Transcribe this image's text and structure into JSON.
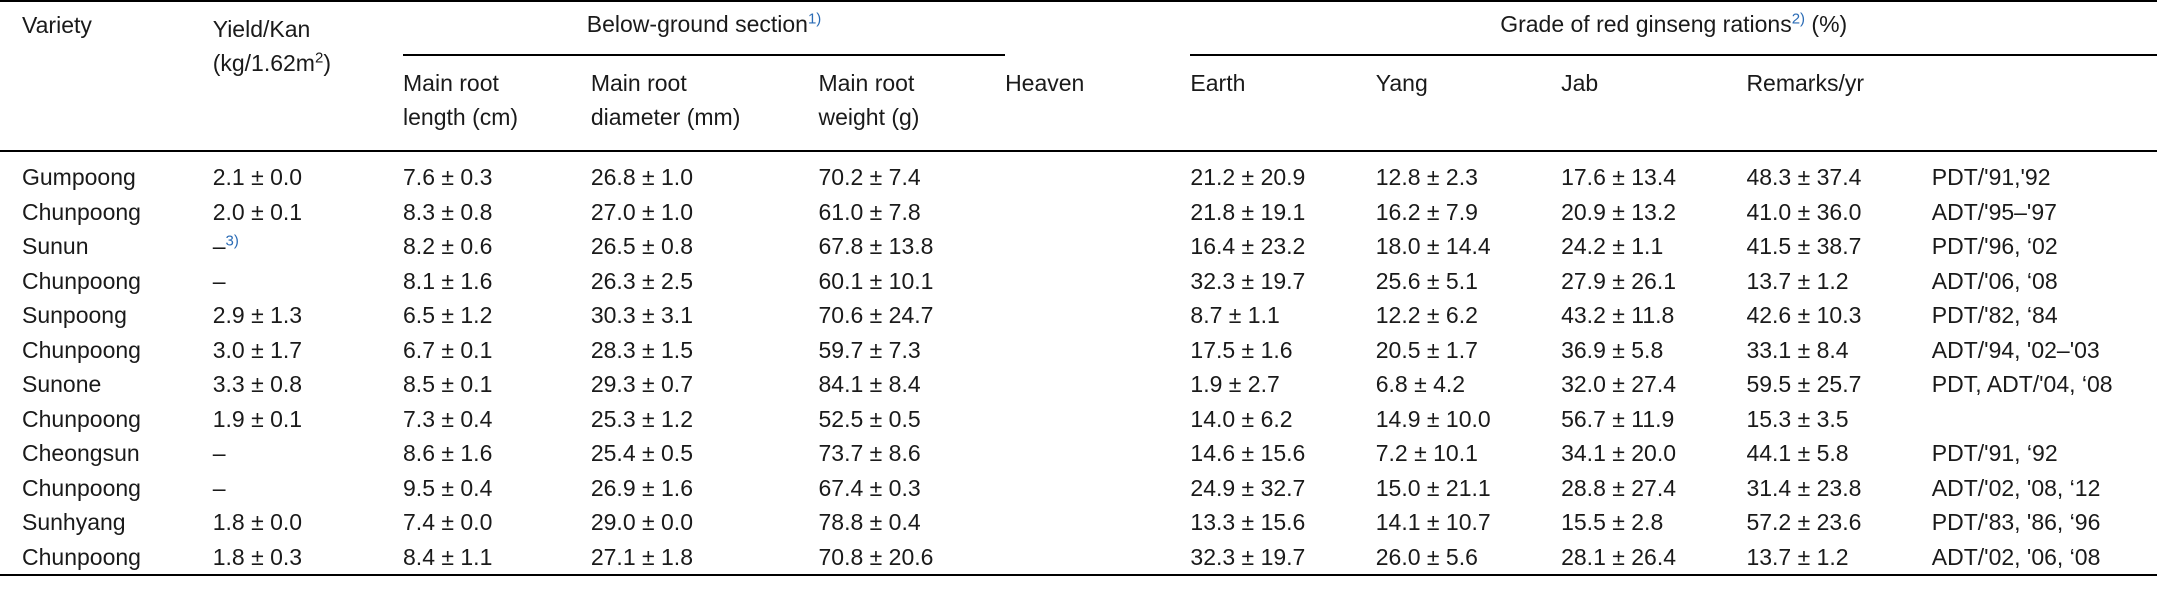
{
  "table": {
    "headers": {
      "variety": "Variety",
      "yield_line1": "Yield/Kan",
      "yield_line2": "(kg/1.62m",
      "yield_sup": "2",
      "yield_close": ")",
      "below_ground": "Below-ground section",
      "below_ground_note": "1)",
      "grade": "Grade of red ginseng rations",
      "grade_note": "2)",
      "grade_unit": " (%)",
      "root_length_1": "Main root",
      "root_length_2": "length (cm)",
      "root_diameter_1": "Main root",
      "root_diameter_2": "diameter (mm)",
      "root_weight_1": "Main root",
      "root_weight_2": "weight (g)",
      "heaven": "Heaven",
      "earth": "Earth",
      "yang": "Yang",
      "jab": "Jab",
      "remarks": "Remarks/yr"
    },
    "rows": [
      {
        "variety": "Gumpoong",
        "yield": "2.1 ± 0.0",
        "yield_note": "",
        "length": "7.6 ± 0.3",
        "diameter": "26.8 ± 1.0",
        "weight": "70.2 ± 7.4",
        "heaven": "21.2 ± 20.9",
        "earth": "12.8 ± 2.3",
        "yang": "17.6 ± 13.4",
        "jab": "48.3 ± 37.4",
        "remarks": "PDT/'91,'92"
      },
      {
        "variety": "Chunpoong",
        "yield": "2.0 ± 0.1",
        "yield_note": "",
        "length": "8.3 ± 0.8",
        "diameter": "27.0 ± 1.0",
        "weight": "61.0 ± 7.8",
        "heaven": "21.8 ± 19.1",
        "earth": "16.2 ± 7.9",
        "yang": "20.9 ± 13.2",
        "jab": "41.0 ± 36.0",
        "remarks": "ADT/'95–'97"
      },
      {
        "variety": "Sunun",
        "yield": "–",
        "yield_note": "3)",
        "length": "8.2 ± 0.6",
        "diameter": "26.5 ± 0.8",
        "weight": "67.8 ± 13.8",
        "heaven": "16.4 ± 23.2",
        "earth": "18.0 ± 14.4",
        "yang": "24.2 ± 1.1",
        "jab": "41.5 ± 38.7",
        "remarks": "PDT/'96, ‘02"
      },
      {
        "variety": "Chunpoong",
        "yield": "–",
        "yield_note": "",
        "length": "8.1 ± 1.6",
        "diameter": "26.3 ± 2.5",
        "weight": "60.1 ± 10.1",
        "heaven": "32.3 ± 19.7",
        "earth": "25.6 ± 5.1",
        "yang": "27.9 ± 26.1",
        "jab": "13.7 ± 1.2",
        "remarks": "ADT/'06, ‘08"
      },
      {
        "variety": "Sunpoong",
        "yield": "2.9 ± 1.3",
        "yield_note": "",
        "length": "6.5 ± 1.2",
        "diameter": "30.3 ± 3.1",
        "weight": "70.6 ± 24.7",
        "heaven": " 8.7 ± 1.1",
        "earth": "12.2 ± 6.2",
        "yang": "43.2 ± 11.8",
        "jab": "42.6 ± 10.3",
        "remarks": "PDT/'82, ‘84"
      },
      {
        "variety": "Chunpoong",
        "yield": "3.0 ± 1.7",
        "yield_note": "",
        "length": "6.7 ± 0.1",
        "diameter": "28.3 ± 1.5",
        "weight": "59.7 ± 7.3",
        "heaven": "17.5 ± 1.6",
        "earth": "20.5 ± 1.7",
        "yang": "36.9 ± 5.8",
        "jab": "33.1 ± 8.4",
        "remarks": "ADT/'94, '02–'03"
      },
      {
        "variety": "Sunone",
        "yield": "3.3 ± 0.8",
        "yield_note": "",
        "length": "8.5 ± 0.1",
        "diameter": "29.3 ± 0.7",
        "weight": "84.1 ± 8.4",
        "heaven": " 1.9 ± 2.7",
        "earth": " 6.8 ± 4.2",
        "yang": "32.0 ± 27.4",
        "jab": "59.5 ± 25.7",
        "remarks": "PDT, ADT/'04, ‘08"
      },
      {
        "variety": "Chunpoong",
        "yield": "1.9 ± 0.1",
        "yield_note": "",
        "length": "7.3 ± 0.4",
        "diameter": "25.3 ± 1.2",
        "weight": "52.5 ± 0.5",
        "heaven": "14.0 ± 6.2",
        "earth": "14.9 ± 10.0",
        "yang": "56.7 ± 11.9",
        "jab": "15.3 ± 3.5",
        "remarks": ""
      },
      {
        "variety": "Cheongsun",
        "yield": "–",
        "yield_note": "",
        "length": "8.6 ± 1.6",
        "diameter": "25.4 ± 0.5",
        "weight": "73.7 ± 8.6",
        "heaven": "14.6 ± 15.6",
        "earth": " 7.2 ± 10.1",
        "yang": "34.1 ± 20.0",
        "jab": "44.1 ± 5.8",
        "remarks": "PDT/'91, ‘92"
      },
      {
        "variety": "Chunpoong",
        "yield": "–",
        "yield_note": "",
        "length": "9.5 ± 0.4",
        "diameter": "26.9 ± 1.6",
        "weight": "67.4 ± 0.3",
        "heaven": "24.9 ± 32.7",
        "earth": "15.0 ± 21.1",
        "yang": "28.8 ± 27.4",
        "jab": "31.4 ± 23.8",
        "remarks": "ADT/'02, '08, ‘12"
      },
      {
        "variety": "Sunhyang",
        "yield": "1.8 ± 0.0",
        "yield_note": "",
        "length": "7.4 ± 0.0",
        "diameter": "29.0 ± 0.0",
        "weight": "78.8 ± 0.4",
        "heaven": "13.3 ± 15.6",
        "earth": "14.1 ± 10.7",
        "yang": "15.5 ± 2.8",
        "jab": "57.2 ± 23.6",
        "remarks": "PDT/'83, '86, ‘96"
      },
      {
        "variety": "Chunpoong",
        "yield": "1.8 ± 0.3",
        "yield_note": "",
        "length": "8.4 ± 1.1",
        "diameter": "27.1 ± 1.8",
        "weight": "70.8 ± 20.6",
        "heaven": "32.3 ± 19.7",
        "earth": "26.0 ± 5.6",
        "yang": "28.1 ± 26.4",
        "jab": "13.7 ± 1.2",
        "remarks": "ADT/'02, '06, ‘08"
      }
    ]
  },
  "colors": {
    "text": "#1a1a1a",
    "footnote_link": "#2a6bb5",
    "rule": "#000000"
  }
}
